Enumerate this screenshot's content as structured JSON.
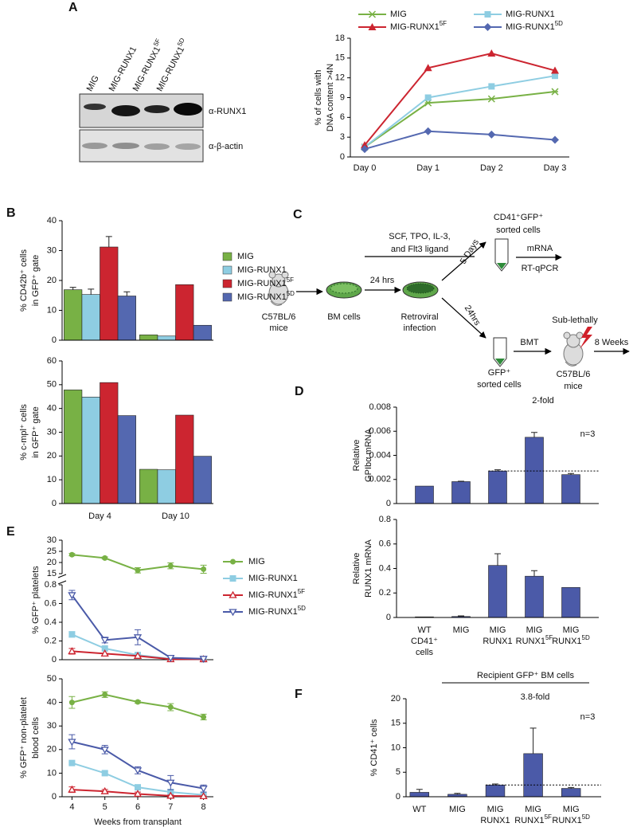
{
  "blot": {
    "panel": "A",
    "lanes": [
      "MIG",
      "MIG-RUNX1",
      "MIG-RUNX15F",
      "MIG-RUNX15D"
    ],
    "antibodies": [
      "α-RUNX1",
      "α-β-actin"
    ]
  },
  "diagram": {
    "panel": "C",
    "mouse_donor": [
      "C57BL/6",
      "mice"
    ],
    "bm_cells": "BM cells",
    "infection": [
      "Retroviral",
      "infection"
    ],
    "cytokines": [
      "SCF, TPO, IL-3,",
      "and Flt3 ligand"
    ],
    "culture_time": "24 hrs",
    "branch_up": "5 Days",
    "branch_down": "24hrs",
    "sorted_up": [
      "CD41⁺GFP⁺",
      "sorted cells"
    ],
    "assay": [
      "mRNA",
      "RT-qPCR"
    ],
    "sorted_down": [
      "GFP⁺",
      "sorted cells"
    ],
    "transplant": "BMT",
    "irradiation": "Sub-lethally",
    "mouse_recipient": [
      "C57BL/6",
      "mice"
    ],
    "duration": "8 Weeks"
  },
  "chart_data": [
    {
      "type": "line",
      "categories": [
        "Day 0",
        "Day 1",
        "Day 2",
        "Day 3"
      ],
      "ylabel": [
        "% of cells with",
        "DNA content >4N"
      ],
      "ylim": [
        0,
        18
      ],
      "yticks": [
        0,
        3,
        6,
        9,
        12,
        15,
        18
      ],
      "series": [
        {
          "name": "MIG",
          "color": "#78b145",
          "marker": "x",
          "values": [
            1.5,
            8.2,
            8.8,
            9.9
          ]
        },
        {
          "name": "MIG-RUNX1",
          "color": "#8ecde2",
          "marker": "square",
          "values": [
            1.5,
            9.0,
            10.7,
            12.3
          ]
        },
        {
          "name": "MIG-RUNX15F",
          "color": "#cc2530",
          "marker": "triangle",
          "values": [
            1.8,
            13.5,
            15.7,
            13.1
          ]
        },
        {
          "name": "MIG-RUNX15D",
          "color": "#5468b0",
          "marker": "diamond",
          "values": [
            1.2,
            3.9,
            3.4,
            2.6
          ]
        }
      ]
    },
    {
      "type": "bar",
      "panel": "B",
      "ylabel": [
        "% CD42b⁺ cells",
        "in GFP⁺ gate"
      ],
      "ylim": [
        0,
        40
      ],
      "yticks": [
        0,
        10,
        20,
        30,
        40
      ],
      "series": [
        {
          "name": "MIG",
          "color": "#78b145",
          "values": [
            16.9,
            1.8
          ],
          "errors": [
            0.8,
            null
          ]
        },
        {
          "name": "MIG-RUNX1",
          "color": "#8ecde2",
          "values": [
            15.3,
            1.4
          ],
          "errors": [
            1.8,
            null
          ]
        },
        {
          "name": "MIG-RUNX15F",
          "color": "#cc2530",
          "values": [
            31.2,
            18.6
          ],
          "errors": [
            3.5,
            null
          ]
        },
        {
          "name": "MIG-RUNX15D",
          "color": "#5468b0",
          "values": [
            14.8,
            5.0
          ],
          "errors": [
            1.4,
            null
          ]
        }
      ]
    },
    {
      "type": "bar",
      "categories": [
        "Day 4",
        "Day 10"
      ],
      "ylabel": [
        "% c-mpl⁺ cells",
        "in GFP⁺ gate"
      ],
      "ylim": [
        0,
        60
      ],
      "yticks": [
        0,
        10,
        20,
        30,
        40,
        50,
        60
      ],
      "series": [
        {
          "color": "#78b145",
          "values": [
            47.8,
            14.4
          ]
        },
        {
          "color": "#8ecde2",
          "values": [
            44.8,
            14.2
          ]
        },
        {
          "color": "#cc2530",
          "values": [
            50.9,
            37.2
          ]
        },
        {
          "color": "#5468b0",
          "values": [
            37.0,
            19.9
          ]
        }
      ]
    },
    {
      "type": "bar",
      "panel": "D",
      "ylabel": [
        "Relative",
        "GPIbα mRNA"
      ],
      "ylim": [
        0,
        0.008
      ],
      "yticks": [
        0,
        0.002,
        0.004,
        0.006,
        0.008
      ],
      "color": "#4b5aa8",
      "values": [
        0.00145,
        0.00182,
        0.0027,
        0.0055,
        0.0024
      ],
      "errors": [
        null,
        3e-05,
        0.0001,
        0.0004,
        0.0001
      ],
      "reference_line": 0.0027,
      "annotations": [
        "2-fold",
        "n=3"
      ]
    },
    {
      "type": "bar",
      "categories": [
        [
          "WT",
          "CD41⁺",
          "cells"
        ],
        [
          "MIG"
        ],
        [
          "MIG",
          "RUNX1"
        ],
        [
          "MIG",
          "RUNX15F"
        ],
        [
          "MIG",
          "RUNX15D"
        ]
      ],
      "ylabel": [
        "Relative",
        "RUNX1 mRNA"
      ],
      "ylim": [
        0,
        0.8
      ],
      "yticks": [
        0,
        0.2,
        0.4,
        0.6,
        0.8
      ],
      "color": "#4b5aa8",
      "values": [
        0.005,
        0.008,
        0.425,
        0.337,
        0.245
      ],
      "errors": [
        null,
        0.005,
        0.095,
        0.045,
        null
      ]
    },
    {
      "type": "line_broken",
      "panel": "E",
      "x": [
        4,
        5,
        6,
        7,
        8
      ],
      "xlim": [
        3.7,
        8.3
      ],
      "ylabel": "% GFP⁺ platelets",
      "ylim": [
        0,
        0.8
      ],
      "yticks": [
        0,
        0.2,
        0.4,
        0.6,
        0.8
      ],
      "ylim_upper": [
        15,
        30
      ],
      "yticks_upper": [
        15,
        20,
        25,
        30
      ],
      "series": [
        {
          "name": "MIG",
          "color": "#78b145",
          "marker": "circle",
          "values": [
            23.5,
            22,
            16.5,
            18.5,
            17
          ],
          "errors": [
            0.5,
            0.5,
            1.2,
            1.3,
            1.8
          ]
        },
        {
          "name": "MIG-RUNX1",
          "color": "#8ecde2",
          "marker": "square",
          "values": [
            0.27,
            0.12,
            0.05,
            0.01,
            0.005
          ],
          "errors": [
            0.03,
            null,
            null,
            null,
            null
          ]
        },
        {
          "name": "MIG-RUNX15F",
          "color": "#cc2530",
          "marker": "triangle-open",
          "values": [
            0.09,
            0.065,
            0.04,
            0.005,
            0.005
          ],
          "errors": [
            0.03,
            null,
            null,
            null,
            null
          ]
        },
        {
          "name": "MIG-RUNX15D",
          "color": "#4a5aa8",
          "marker": "triangle-down-open",
          "values": [
            0.69,
            0.21,
            0.24,
            0.02,
            0.01
          ],
          "errors": [
            0.05,
            0.03,
            0.08,
            null,
            null
          ]
        }
      ]
    },
    {
      "type": "line",
      "x": [
        4,
        5,
        6,
        7,
        8
      ],
      "xlim": [
        3.7,
        8.3
      ],
      "xticks": [
        4,
        5,
        6,
        7,
        8
      ],
      "xlabel": "Weeks from transplant",
      "ylabel": [
        "% GFP⁺ non-platelet",
        "blood cells"
      ],
      "ylim": [
        0,
        50
      ],
      "yticks": [
        0,
        10,
        20,
        30,
        40,
        50
      ],
      "series": [
        {
          "color": "#78b145",
          "marker": "circle",
          "values": [
            40,
            43.3,
            40.2,
            38,
            33.8
          ],
          "errors": [
            2.5,
            1.2,
            0.5,
            1.5,
            1.2
          ]
        },
        {
          "color": "#8ecde2",
          "marker": "square",
          "values": [
            14.3,
            10,
            4,
            2,
            0.8
          ],
          "errors": [
            0.5,
            0.8,
            0.5,
            0.3,
            0.2
          ]
        },
        {
          "color": "#cc2530",
          "marker": "triangle-open",
          "values": [
            3,
            2.3,
            1.2,
            0.4,
            0.2
          ],
          "errors": [
            1.2,
            0.8,
            0.8,
            0.3,
            0.1
          ]
        },
        {
          "color": "#4a5aa8",
          "marker": "triangle-down-open",
          "values": [
            23.3,
            20,
            11.2,
            6,
            3.5
          ],
          "errors": [
            3,
            1.8,
            1.5,
            3,
            1.5
          ]
        }
      ]
    },
    {
      "type": "bar",
      "panel": "F",
      "categories": [
        [
          "WT"
        ],
        [
          "MIG"
        ],
        [
          "MIG",
          "RUNX1"
        ],
        [
          "MIG",
          "RUNX15F"
        ],
        [
          "MIG",
          "RUNX15D"
        ]
      ],
      "ylabel": "% CD41⁺ cells",
      "ylim": [
        0,
        20
      ],
      "yticks": [
        0,
        5,
        10,
        15,
        20
      ],
      "color": "#4b5aa8",
      "values": [
        0.9,
        0.5,
        2.4,
        8.8,
        1.7
      ],
      "errors": [
        0.6,
        0.2,
        0.2,
        5.2,
        0.2
      ],
      "reference_line": 2.4,
      "annotations": [
        "Recipient GFP⁺ BM cells",
        "3.8-fold",
        "n=3"
      ]
    }
  ]
}
